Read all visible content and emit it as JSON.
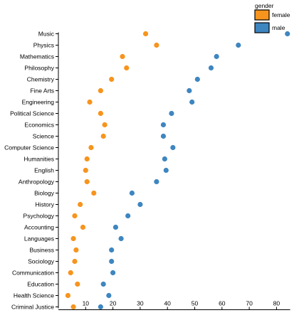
{
  "chart_data": {
    "type": "scatter",
    "title": "",
    "xlabel": "",
    "ylabel": "",
    "xlim": [
      0,
      85
    ],
    "x_ticks": [
      10,
      20,
      30,
      40,
      50,
      60,
      70,
      80
    ],
    "grid": false,
    "legend": {
      "title": "gender",
      "placement": "top-right"
    },
    "categories": [
      "Music",
      "Physics",
      "Mathematics",
      "Philosophy",
      "Chemistry",
      "Fine Arts",
      "Engineering",
      "Political Science",
      "Economics",
      "Science",
      "Computer Science",
      "Humanities",
      "English",
      "Anthropology",
      "Biology",
      "History",
      "Psychology",
      "Accounting",
      "Languages",
      "Business",
      "Sociology",
      "Communication",
      "Education",
      "Health Science",
      "Criminal Justice"
    ],
    "series": [
      {
        "name": "female",
        "color": "#f7941d",
        "values": [
          32,
          36,
          23.5,
          25,
          19.5,
          15.5,
          11.5,
          15.5,
          17,
          16.5,
          12,
          10.5,
          10,
          10.5,
          13,
          8,
          6,
          9,
          5.5,
          6.5,
          6,
          4.5,
          7,
          3.5,
          5.5
        ]
      },
      {
        "name": "male",
        "color": "#3e86c0",
        "values": [
          84,
          66,
          58,
          56,
          51,
          48,
          49,
          41.5,
          38.5,
          38.5,
          42,
          39,
          39.5,
          36,
          27,
          30,
          25.5,
          21,
          23,
          19.5,
          19.5,
          20,
          16.5,
          18.5,
          15.5
        ]
      }
    ]
  }
}
